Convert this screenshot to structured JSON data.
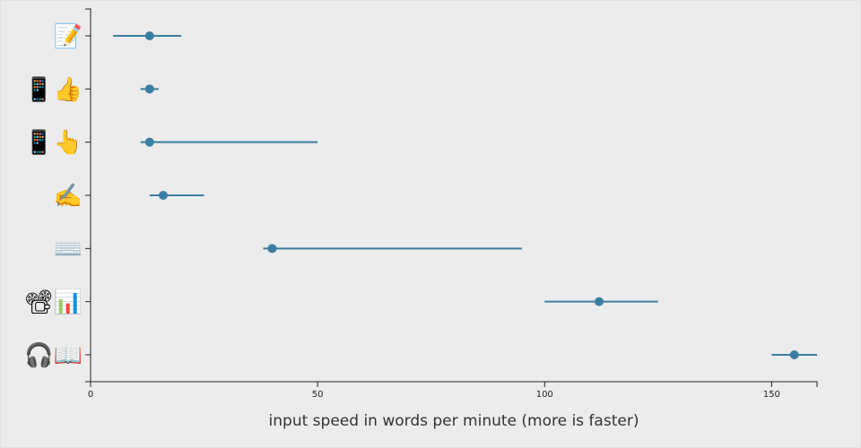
{
  "chart_data": {
    "type": "scatter",
    "title": "",
    "xlabel": "input speed in words per minute (more is faster)",
    "ylabel": "",
    "xlim": [
      0,
      160
    ],
    "xticks": [
      0,
      50,
      100,
      150
    ],
    "grid": false,
    "colors": {
      "series": "#3a7ea3",
      "background": "#ececec"
    },
    "categories": [
      "📝",
      "📱👍",
      "📱👆",
      "✍️",
      "⌨️",
      "📽📊",
      "🎧📖"
    ],
    "series": [
      {
        "points": [
          {
            "category": "📝",
            "value": 13,
            "min": 5,
            "max": 20
          },
          {
            "category": "📱👍",
            "value": 13,
            "min": 11,
            "max": 15
          },
          {
            "category": "📱👆",
            "value": 13,
            "min": 11,
            "max": 50
          },
          {
            "category": "✍️",
            "value": 16,
            "min": 13,
            "max": 25
          },
          {
            "category": "⌨️",
            "value": 40,
            "min": 38,
            "max": 95
          },
          {
            "category": "📽📊",
            "value": 112,
            "min": 100,
            "max": 125
          },
          {
            "category": "🎧📖",
            "value": 155,
            "min": 150,
            "max": 160
          }
        ]
      }
    ]
  }
}
